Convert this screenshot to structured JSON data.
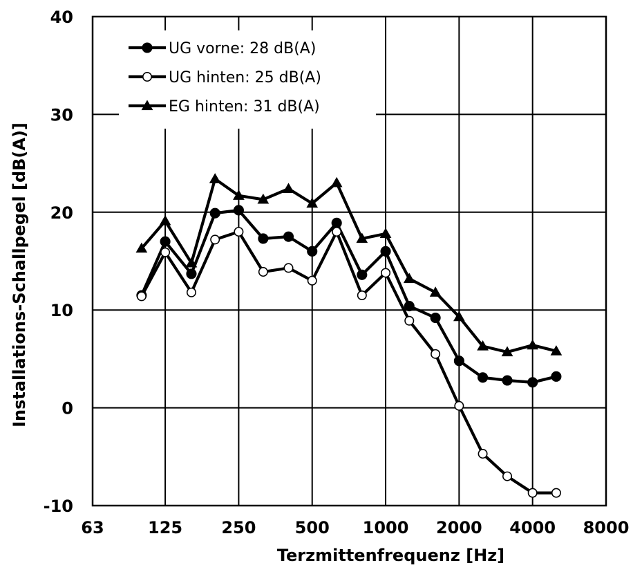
{
  "chart_data": {
    "type": "line",
    "x_scale": "log2",
    "xlabel": "Terzmittenfrequenz [Hz]",
    "ylabel": "Installations-Schallpegel [dB(A)]",
    "xlim": [
      63,
      8000
    ],
    "ylim": [
      -10,
      40
    ],
    "x_tick_values": [
      63,
      125,
      250,
      500,
      1000,
      2000,
      4000,
      8000
    ],
    "x_tick_labels": [
      "63",
      "125",
      "250",
      "500",
      "1000",
      "2000",
      "4000",
      "8000"
    ],
    "y_tick_values": [
      -10,
      0,
      10,
      20,
      30,
      40
    ],
    "y_tick_labels": [
      "-10",
      "0",
      "10",
      "20",
      "30",
      "40"
    ],
    "grid": true,
    "legend_position": "top-left",
    "x": [
      100,
      125,
      160,
      200,
      250,
      315,
      400,
      500,
      630,
      800,
      1000,
      1250,
      1600,
      2000,
      2500,
      3150,
      4000,
      5000
    ],
    "series": [
      {
        "name": "UG vorne: 28 dB(A)",
        "marker": "filled-circle",
        "color": "#000000",
        "values": [
          11.5,
          17.0,
          13.7,
          19.9,
          20.2,
          17.3,
          17.5,
          16.0,
          18.9,
          13.6,
          16.0,
          10.4,
          9.2,
          4.8,
          3.1,
          2.8,
          2.6,
          3.2
        ]
      },
      {
        "name": "UG hinten: 25 dB(A)",
        "marker": "open-circle",
        "color": "#000000",
        "values": [
          11.4,
          15.9,
          11.8,
          17.2,
          18.0,
          13.9,
          14.3,
          13.0,
          18.0,
          11.5,
          13.8,
          8.9,
          5.5,
          0.2,
          -4.7,
          -7.0,
          -8.7,
          -8.7
        ]
      },
      {
        "name": "EG hinten: 31 dB(A)",
        "marker": "filled-triangle",
        "color": "#000000",
        "values": [
          16.3,
          19.1,
          14.8,
          23.4,
          21.7,
          21.3,
          22.4,
          20.9,
          23.0,
          17.3,
          17.8,
          13.2,
          11.8,
          9.3,
          6.3,
          5.7,
          6.4,
          5.8
        ]
      }
    ]
  }
}
